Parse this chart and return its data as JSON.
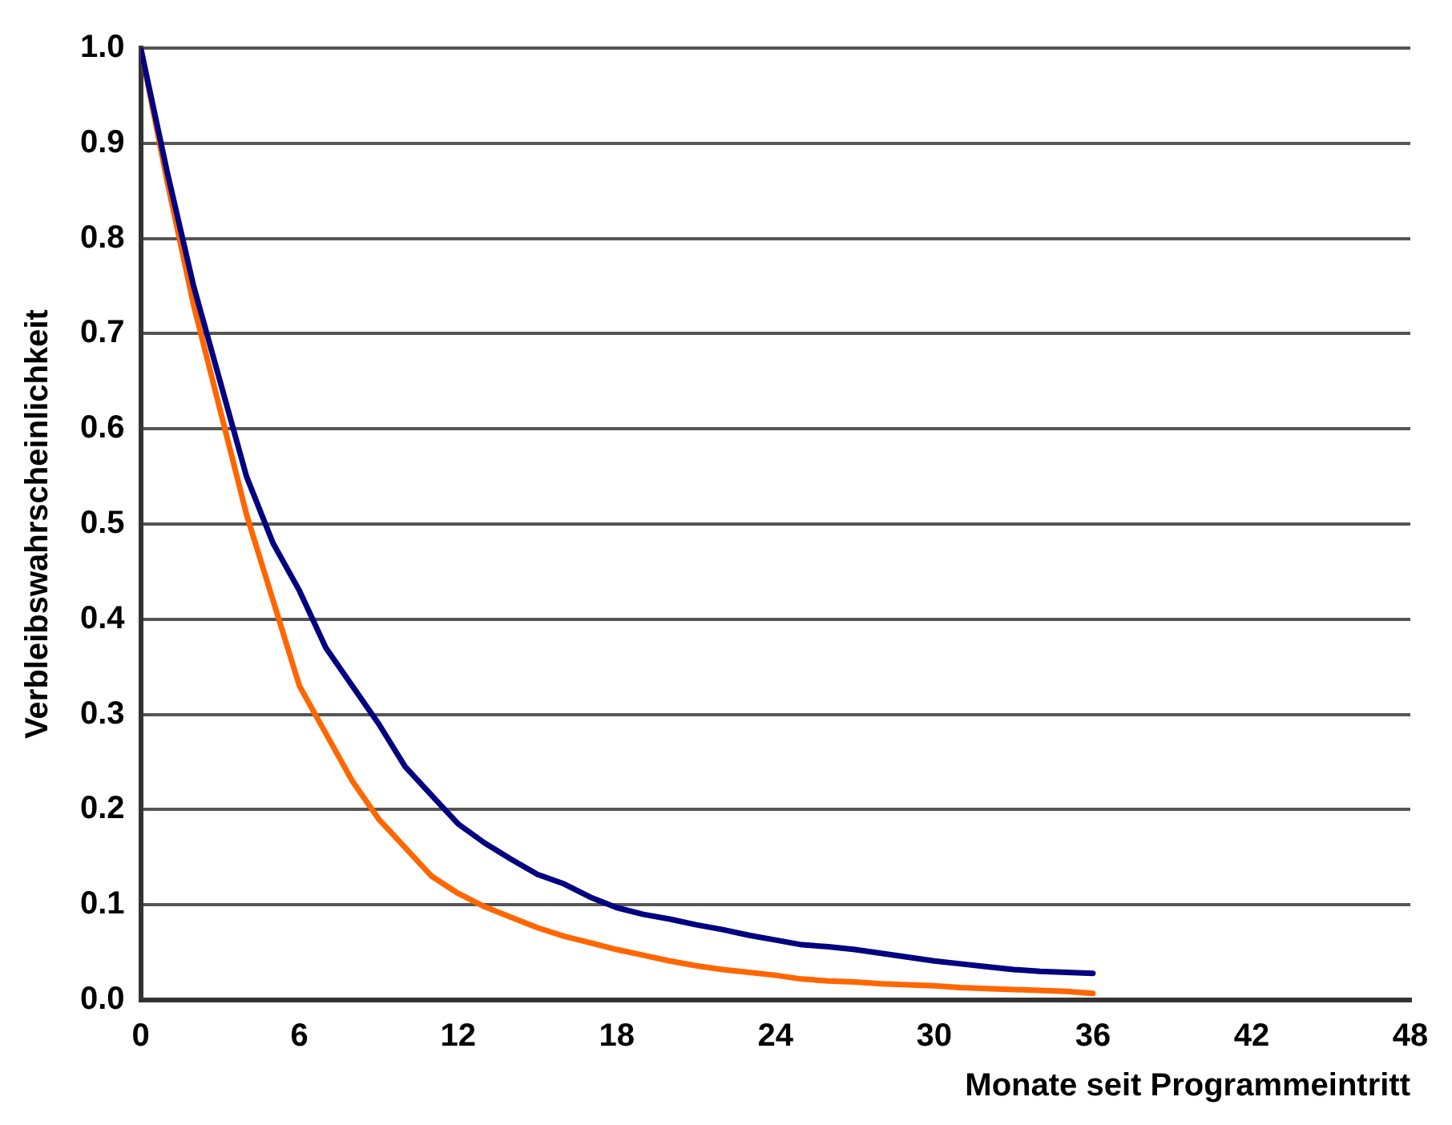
{
  "chart_data": {
    "type": "line",
    "xlabel": "Monate seit Programmeintritt",
    "ylabel": "Verbleibswahrscheinlichkeit",
    "x": [
      0,
      1,
      2,
      3,
      4,
      5,
      6,
      7,
      8,
      9,
      10,
      11,
      12,
      13,
      14,
      15,
      16,
      17,
      18,
      19,
      20,
      21,
      22,
      23,
      24,
      25,
      26,
      27,
      28,
      29,
      30,
      31,
      32,
      33,
      34,
      35,
      36
    ],
    "series": [
      {
        "color": "#000080",
        "values": [
          1.0,
          0.87,
          0.75,
          0.65,
          0.55,
          0.48,
          0.43,
          0.37,
          0.33,
          0.29,
          0.245,
          0.215,
          0.185,
          0.165,
          0.148,
          0.132,
          0.122,
          0.108,
          0.097,
          0.09,
          0.085,
          0.079,
          0.074,
          0.068,
          0.063,
          0.058,
          0.056,
          0.053,
          0.049,
          0.045,
          0.041,
          0.038,
          0.035,
          0.032,
          0.03,
          0.029,
          0.028
        ]
      },
      {
        "color": "#ff6600",
        "values": [
          1.0,
          0.86,
          0.73,
          0.62,
          0.51,
          0.42,
          0.33,
          0.28,
          0.23,
          0.19,
          0.16,
          0.13,
          0.112,
          0.098,
          0.087,
          0.076,
          0.067,
          0.06,
          0.053,
          0.047,
          0.041,
          0.036,
          0.032,
          0.029,
          0.026,
          0.022,
          0.02,
          0.019,
          0.017,
          0.016,
          0.015,
          0.013,
          0.012,
          0.011,
          0.01,
          0.009,
          0.007
        ]
      }
    ],
    "xlim": [
      0,
      48
    ],
    "xticks": [
      0,
      6,
      12,
      18,
      24,
      30,
      36,
      42,
      48
    ],
    "ylim": [
      0,
      1
    ],
    "yticks": [
      {
        "value": 0,
        "label": "0.0"
      },
      {
        "value": 0.1,
        "label": "0.1"
      },
      {
        "value": 0.2,
        "label": "0.2"
      },
      {
        "value": 0.3,
        "label": "0.3"
      },
      {
        "value": 0.4,
        "label": "0.4"
      },
      {
        "value": 0.5,
        "label": "0.5"
      },
      {
        "value": 0.6,
        "label": "0.6"
      },
      {
        "value": 0.7,
        "label": "0.7"
      },
      {
        "value": 0.8,
        "label": "0.8"
      },
      {
        "value": 0.9,
        "label": "0.9"
      },
      {
        "value": 1,
        "label": "1.0"
      }
    ],
    "grid": "y",
    "legend": false,
    "marker": "none",
    "line_style": "solid"
  }
}
